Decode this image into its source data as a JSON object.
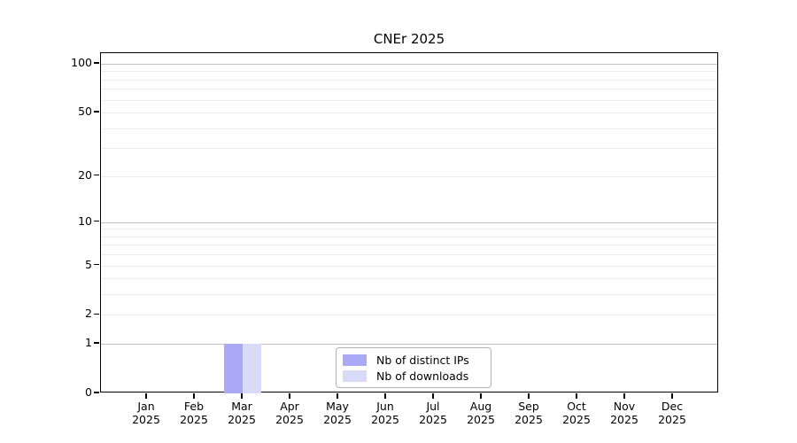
{
  "chart_data": {
    "type": "bar",
    "title": "CNEr 2025",
    "xlabel": "",
    "ylabel": "",
    "categories": [
      "Jan",
      "Feb",
      "Mar",
      "Apr",
      "May",
      "Jun",
      "Jul",
      "Aug",
      "Sep",
      "Oct",
      "Nov",
      "Dec"
    ],
    "category_year": "2025",
    "series": [
      {
        "name": "Nb of distinct IPs",
        "color": "#a9a9f6",
        "values": [
          0,
          0,
          1,
          0,
          0,
          0,
          0,
          0,
          0,
          0,
          0,
          0
        ]
      },
      {
        "name": "Nb of downloads",
        "color": "#d9d9f8",
        "values": [
          0,
          0,
          1,
          0,
          0,
          0,
          0,
          0,
          0,
          0,
          0,
          0
        ]
      }
    ],
    "yscale": "log1p",
    "ylim": [
      0,
      116
    ],
    "yticks": [
      0,
      1,
      2,
      5,
      10,
      20,
      50,
      100
    ],
    "grid": {
      "major": [
        1,
        10,
        100
      ],
      "minor": [
        2,
        3,
        4,
        5,
        6,
        7,
        8,
        9,
        20,
        30,
        40,
        50,
        60,
        70,
        80,
        90
      ],
      "minor_color": "#ececec",
      "major_color": "#c3c3c3"
    },
    "legend_position": "lower center (inside axes)"
  },
  "legend": {
    "items": [
      {
        "label": "Nb of distinct IPs",
        "color": "#a9a9f6"
      },
      {
        "label": "Nb of downloads",
        "color": "#d9d9f8"
      }
    ]
  }
}
